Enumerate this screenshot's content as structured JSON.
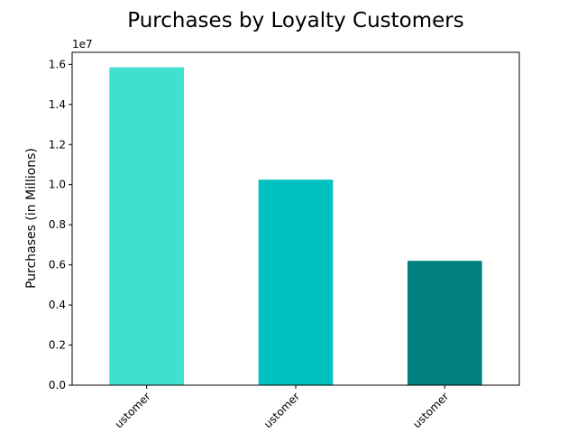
{
  "chart_data": {
    "type": "bar",
    "title": "Purchases by Loyalty Customers",
    "ylabel": "Purchases (in Millions)",
    "xlabel": "",
    "scale_label": "1e7",
    "categories": [
      "ustomer",
      "ustomer",
      "ustomer"
    ],
    "values": [
      15850000,
      10250000,
      6200000
    ],
    "colors": [
      "#40e0d0",
      "#00c0c0",
      "#008080"
    ],
    "ylim": [
      0,
      16600000
    ],
    "yticks": [
      0,
      2000000,
      4000000,
      6000000,
      8000000,
      10000000,
      12000000,
      14000000,
      16000000
    ],
    "ytick_labels": [
      "0.0",
      "0.2",
      "0.4",
      "0.6",
      "0.8",
      "1.0",
      "1.2",
      "1.4",
      "1.6"
    ],
    "grid": false,
    "legend": "none"
  }
}
